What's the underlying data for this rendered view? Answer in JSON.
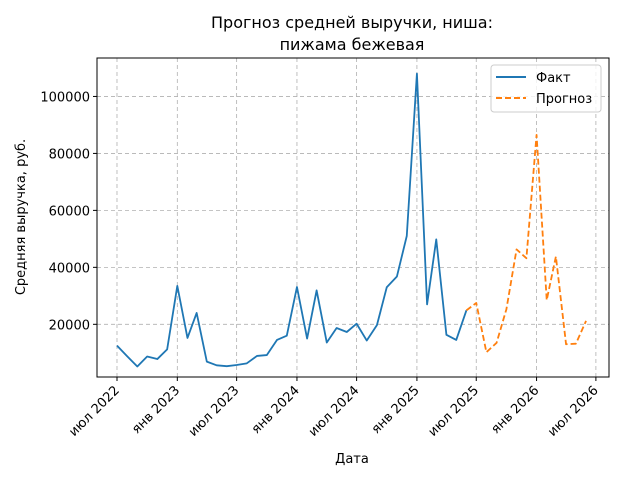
{
  "chart_data": {
    "type": "line",
    "title": [
      "Прогноз средней выручки, ниша:",
      "пижама бежевая"
    ],
    "xlabel": "Дата",
    "ylabel": "Средняя выручка, руб.",
    "x_ticks": [
      {
        "date": "2022-07-01",
        "label": "июл 2022"
      },
      {
        "date": "2023-01-01",
        "label": "янв 2023"
      },
      {
        "date": "2023-07-01",
        "label": "июл 2023"
      },
      {
        "date": "2024-01-01",
        "label": "янв 2024"
      },
      {
        "date": "2024-07-01",
        "label": "июл 2024"
      },
      {
        "date": "2025-01-01",
        "label": "янв 2025"
      },
      {
        "date": "2025-07-01",
        "label": "июл 2025"
      },
      {
        "date": "2026-01-01",
        "label": "янв 2026"
      },
      {
        "date": "2026-07-01",
        "label": "июл 2026"
      }
    ],
    "y_ticks": [
      20000,
      40000,
      60000,
      80000,
      100000
    ],
    "xlim": [
      "2022-05-01",
      "2026-08-10"
    ],
    "ylim": [
      1500,
      113500
    ],
    "grid": true,
    "legend_position": "top-right",
    "series": [
      {
        "name": "Факт",
        "color": "#1f77b4",
        "style": "solid",
        "x": [
          "2022-07-01",
          "2022-08-01",
          "2022-09-01",
          "2022-10-01",
          "2022-11-01",
          "2022-12-01",
          "2023-01-01",
          "2023-02-01",
          "2023-03-01",
          "2023-04-01",
          "2023-05-01",
          "2023-06-01",
          "2023-07-01",
          "2023-08-01",
          "2023-09-01",
          "2023-10-01",
          "2023-11-01",
          "2023-12-01",
          "2024-01-01",
          "2024-02-01",
          "2024-03-01",
          "2024-04-01",
          "2024-05-01",
          "2024-06-01",
          "2024-07-01",
          "2024-08-01",
          "2024-09-01",
          "2024-10-01",
          "2024-11-01",
          "2024-12-01",
          "2025-01-01",
          "2025-02-01",
          "2025-03-01",
          "2025-04-01",
          "2025-05-01",
          "2025-06-01"
        ],
        "values": [
          12500,
          8800,
          5200,
          8700,
          7800,
          11200,
          33500,
          15200,
          24000,
          6900,
          5600,
          5300,
          5700,
          6300,
          8900,
          9200,
          14500,
          16000,
          33100,
          15000,
          31900,
          13600,
          18700,
          17300,
          20200,
          14300,
          19700,
          33000,
          36800,
          51000,
          108000,
          27000,
          49800,
          16300,
          14500,
          24900
        ]
      },
      {
        "name": "Прогноз",
        "color": "#ff7f0e",
        "style": "dashed",
        "x": [
          "2025-06-01",
          "2025-07-01",
          "2025-08-01",
          "2025-09-01",
          "2025-10-01",
          "2025-11-01",
          "2025-12-01",
          "2026-01-01",
          "2026-02-01",
          "2026-03-01",
          "2026-04-01",
          "2026-05-01",
          "2026-06-01"
        ],
        "values": [
          24900,
          27500,
          10200,
          13500,
          25300,
          46300,
          43200,
          86500,
          28500,
          43800,
          13000,
          13200,
          21200
        ]
      }
    ]
  }
}
